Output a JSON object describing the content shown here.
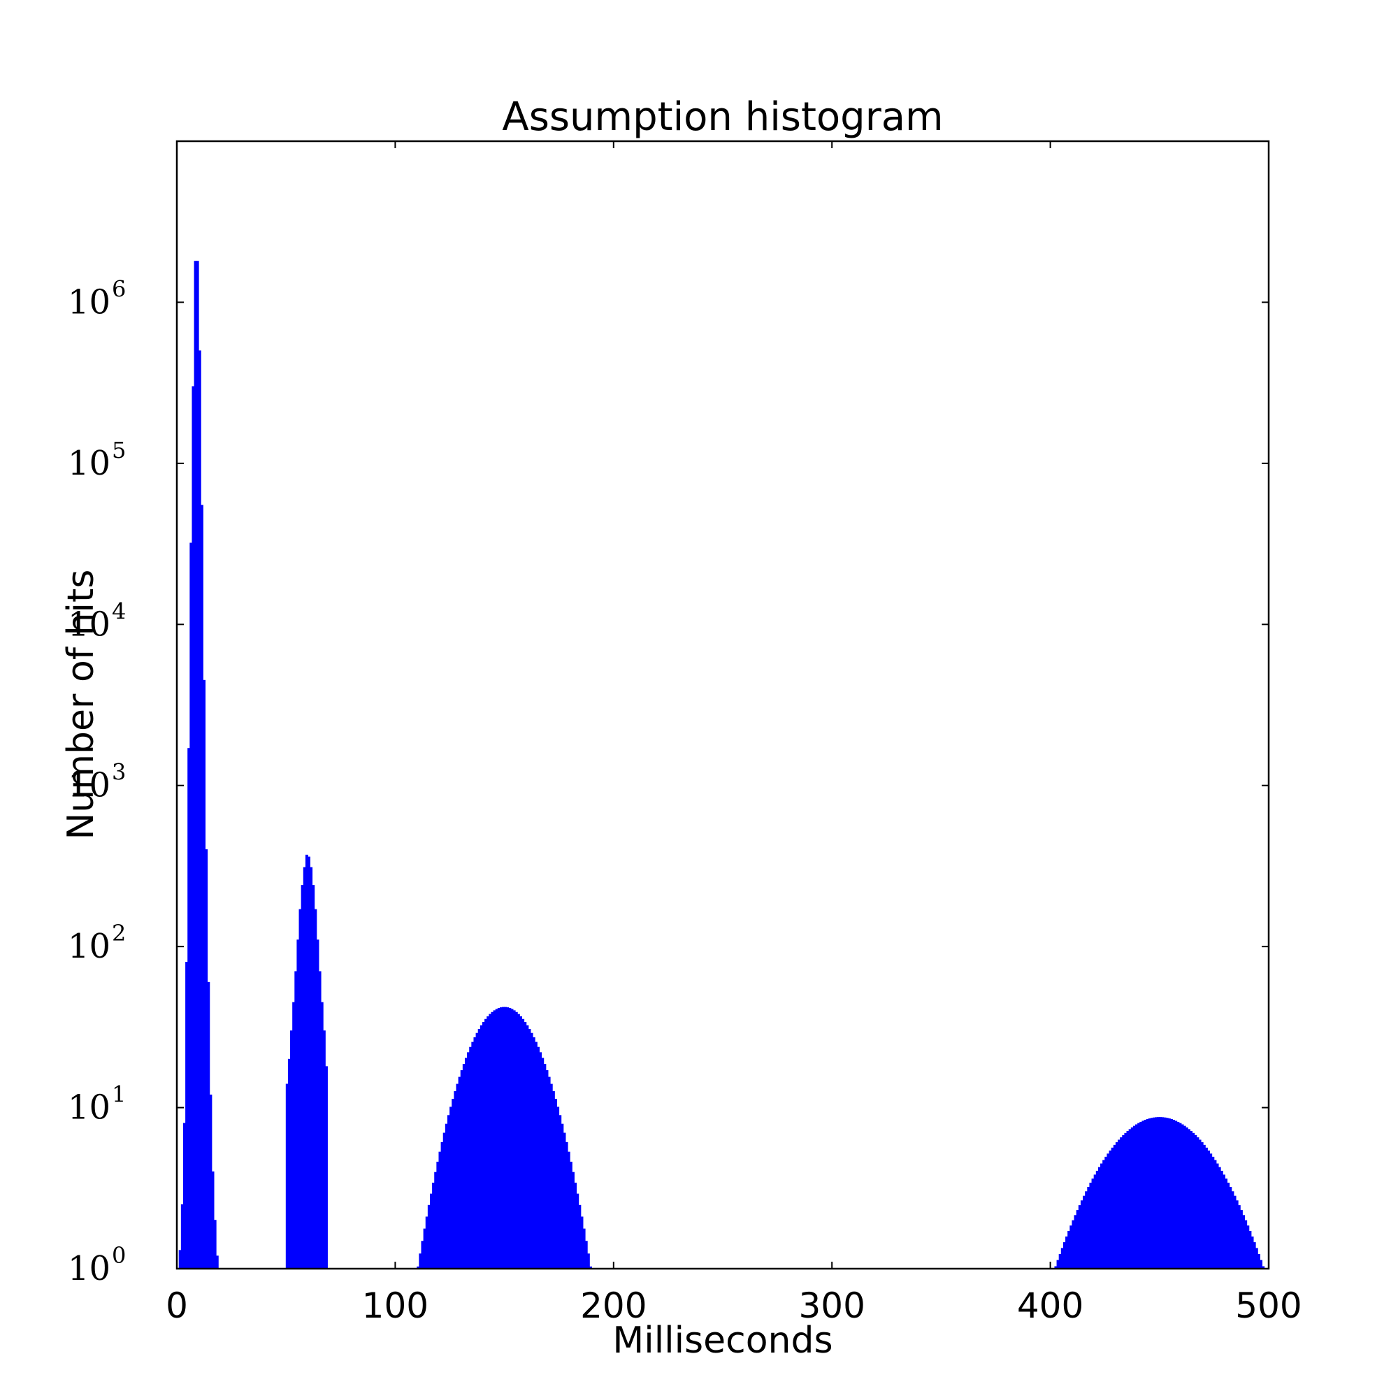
{
  "chart_data": {
    "type": "bar",
    "title": "Assumption histogram",
    "xlabel": "Milliseconds",
    "ylabel": "Number of hits",
    "xlim": [
      0,
      500
    ],
    "ylim": [
      1,
      10000000
    ],
    "yscale": "log",
    "grid": false,
    "bar_color": "#0000ff",
    "xticks": [
      0,
      100,
      200,
      300,
      400,
      500
    ],
    "xtick_labels": [
      "0",
      "100",
      "200",
      "300",
      "400",
      "500"
    ],
    "yticks": [
      1,
      10,
      100,
      1000,
      10000,
      100000,
      1000000
    ],
    "ytick_labels": [
      {
        "base": "10",
        "exp": "0"
      },
      {
        "base": "10",
        "exp": "1"
      },
      {
        "base": "10",
        "exp": "2"
      },
      {
        "base": "10",
        "exp": "3"
      },
      {
        "base": "10",
        "exp": "4"
      },
      {
        "base": "10",
        "exp": "5"
      },
      {
        "base": "10",
        "exp": "6"
      }
    ],
    "bin_width": 1,
    "series": [
      {
        "bins": [
          {
            "x": 1,
            "y": 1.3
          },
          {
            "x": 2,
            "y": 2.5
          },
          {
            "x": 3,
            "y": 8
          },
          {
            "x": 4,
            "y": 80
          },
          {
            "x": 5,
            "y": 1700
          },
          {
            "x": 6,
            "y": 32000
          },
          {
            "x": 7,
            "y": 300000
          },
          {
            "x": 8,
            "y": 1800000
          },
          {
            "x": 9,
            "y": 1800000
          },
          {
            "x": 10,
            "y": 500000
          },
          {
            "x": 11,
            "y": 55000
          },
          {
            "x": 12,
            "y": 4500
          },
          {
            "x": 13,
            "y": 400
          },
          {
            "x": 14,
            "y": 60
          },
          {
            "x": 15,
            "y": 12
          },
          {
            "x": 16,
            "y": 4
          },
          {
            "x": 17,
            "y": 2
          },
          {
            "x": 18,
            "y": 1.2
          }
        ]
      },
      {
        "bins": [
          {
            "x": 50,
            "y": 14
          },
          {
            "x": 51,
            "y": 20
          },
          {
            "x": 52,
            "y": 30
          },
          {
            "x": 53,
            "y": 45
          },
          {
            "x": 54,
            "y": 70
          },
          {
            "x": 55,
            "y": 110
          },
          {
            "x": 56,
            "y": 170
          },
          {
            "x": 57,
            "y": 240
          },
          {
            "x": 58,
            "y": 310
          },
          {
            "x": 59,
            "y": 370
          },
          {
            "x": 60,
            "y": 360
          },
          {
            "x": 61,
            "y": 310
          },
          {
            "x": 62,
            "y": 240
          },
          {
            "x": 63,
            "y": 170
          },
          {
            "x": 64,
            "y": 110
          },
          {
            "x": 65,
            "y": 70
          },
          {
            "x": 66,
            "y": 45
          },
          {
            "x": 67,
            "y": 30
          },
          {
            "x": 68,
            "y": 18
          }
        ]
      },
      {
        "gaussian": {
          "start": 100,
          "end": 200,
          "mean": 150,
          "peak": 42,
          "sigma": 14.5
        }
      },
      {
        "gaussian": {
          "start": 400,
          "end": 500,
          "mean": 450,
          "peak": 8.7,
          "sigma": 23
        }
      }
    ]
  }
}
